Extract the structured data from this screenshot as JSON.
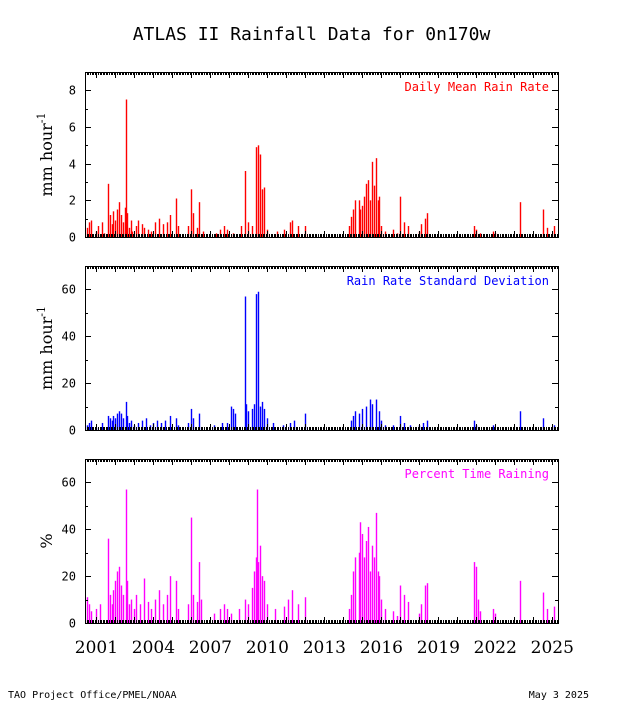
{
  "page": {
    "title": "ATLAS II Rainfall Data for 0n170w",
    "footer_left": "TAO Project Office/PMEL/NOAA",
    "footer_right": "May  3 2025"
  },
  "colors": {
    "rain_rate": "#ff0000",
    "std_dev": "#0000ff",
    "pct_time": "#ff00ff"
  },
  "chart_data": [
    {
      "type": "bar",
      "title": "Daily Mean Rain Rate",
      "ylabel": "mm hour-1",
      "ylim": [
        0,
        9
      ],
      "yticks": [
        0,
        2,
        4,
        6,
        8
      ],
      "color": "#ff0000",
      "xlim": [
        2000.4,
        2025.3
      ],
      "series": [
        [
          2000.5,
          0.5
        ],
        [
          2000.6,
          0.8
        ],
        [
          2000.7,
          0.9
        ],
        [
          2001.0,
          0.3
        ],
        [
          2001.1,
          0.6
        ],
        [
          2001.3,
          0.8
        ],
        [
          2001.4,
          0.2
        ],
        [
          2001.6,
          2.9
        ],
        [
          2001.7,
          1.2
        ],
        [
          2001.8,
          0.7
        ],
        [
          2001.9,
          1.4
        ],
        [
          2002.0,
          0.9
        ],
        [
          2002.1,
          1.5
        ],
        [
          2002.2,
          1.9
        ],
        [
          2002.3,
          1.2
        ],
        [
          2002.4,
          0.8
        ],
        [
          2002.5,
          1.6
        ],
        [
          2002.55,
          7.5
        ],
        [
          2002.6,
          1.3
        ],
        [
          2002.7,
          0.5
        ],
        [
          2002.8,
          0.9
        ],
        [
          2002.9,
          0.3
        ],
        [
          2003.1,
          0.6
        ],
        [
          2003.2,
          0.9
        ],
        [
          2003.4,
          0.7
        ],
        [
          2003.5,
          0.5
        ],
        [
          2003.7,
          0.4
        ],
        [
          2003.9,
          0.3
        ],
        [
          2004.1,
          0.8
        ],
        [
          2004.3,
          1.0
        ],
        [
          2004.5,
          0.7
        ],
        [
          2004.7,
          0.8
        ],
        [
          2004.9,
          1.2
        ],
        [
          2005.2,
          2.1
        ],
        [
          2005.3,
          0.6
        ],
        [
          2005.8,
          0.6
        ],
        [
          2006.0,
          2.6
        ],
        [
          2006.1,
          1.3
        ],
        [
          2006.3,
          0.5
        ],
        [
          2006.4,
          1.9
        ],
        [
          2006.6,
          0.3
        ],
        [
          2007.3,
          0.2
        ],
        [
          2007.5,
          0.4
        ],
        [
          2007.7,
          0.6
        ],
        [
          2007.9,
          0.4
        ],
        [
          2008.2,
          0.2
        ],
        [
          2008.6,
          0.6
        ],
        [
          2008.8,
          3.6
        ],
        [
          2009.0,
          0.8
        ],
        [
          2009.2,
          0.6
        ],
        [
          2009.4,
          4.9
        ],
        [
          2009.5,
          5.0
        ],
        [
          2009.6,
          4.5
        ],
        [
          2009.7,
          2.6
        ],
        [
          2009.8,
          2.7
        ],
        [
          2010.0,
          0.4
        ],
        [
          2010.5,
          0.3
        ],
        [
          2010.9,
          0.4
        ],
        [
          2011.2,
          0.8
        ],
        [
          2011.3,
          0.9
        ],
        [
          2011.6,
          0.6
        ],
        [
          2012.0,
          0.6
        ],
        [
          2014.3,
          0.6
        ],
        [
          2014.4,
          1.1
        ],
        [
          2014.5,
          1.5
        ],
        [
          2014.6,
          2.0
        ],
        [
          2014.8,
          2.0
        ],
        [
          2014.9,
          1.5
        ],
        [
          2015.0,
          1.7
        ],
        [
          2015.1,
          2.2
        ],
        [
          2015.2,
          2.9
        ],
        [
          2015.3,
          3.1
        ],
        [
          2015.4,
          2.0
        ],
        [
          2015.5,
          4.1
        ],
        [
          2015.6,
          2.8
        ],
        [
          2015.7,
          4.3
        ],
        [
          2015.8,
          2.0
        ],
        [
          2015.9,
          2.2
        ],
        [
          2016.0,
          0.6
        ],
        [
          2016.2,
          0.3
        ],
        [
          2016.6,
          0.4
        ],
        [
          2016.8,
          0.2
        ],
        [
          2017.0,
          2.2
        ],
        [
          2017.2,
          0.8
        ],
        [
          2017.4,
          0.6
        ],
        [
          2018.0,
          0.3
        ],
        [
          2018.1,
          0.7
        ],
        [
          2018.3,
          1.0
        ],
        [
          2018.4,
          1.3
        ],
        [
          2020.9,
          0.6
        ],
        [
          2021.0,
          0.4
        ],
        [
          2021.2,
          0.2
        ],
        [
          2021.9,
          0.3
        ],
        [
          2022.0,
          0.2
        ],
        [
          2023.3,
          1.9
        ],
        [
          2024.5,
          1.5
        ],
        [
          2024.7,
          0.5
        ],
        [
          2025.1,
          0.6
        ]
      ]
    },
    {
      "type": "bar",
      "title": "Rain Rate Standard Deviation",
      "ylabel": "mm hour-1",
      "ylim": [
        0,
        70
      ],
      "yticks": [
        0,
        20,
        40,
        60
      ],
      "color": "#0000ff",
      "xlim": [
        2000.4,
        2025.3
      ],
      "series": [
        [
          2000.5,
          2
        ],
        [
          2000.6,
          3
        ],
        [
          2000.7,
          4
        ],
        [
          2001.0,
          1
        ],
        [
          2001.3,
          3
        ],
        [
          2001.6,
          6
        ],
        [
          2001.7,
          5
        ],
        [
          2001.8,
          4
        ],
        [
          2001.9,
          6
        ],
        [
          2002.0,
          5
        ],
        [
          2002.1,
          7
        ],
        [
          2002.2,
          8
        ],
        [
          2002.3,
          7
        ],
        [
          2002.4,
          5
        ],
        [
          2002.55,
          12
        ],
        [
          2002.6,
          6
        ],
        [
          2002.7,
          3
        ],
        [
          2002.8,
          4
        ],
        [
          2003.0,
          2
        ],
        [
          2003.2,
          3
        ],
        [
          2003.4,
          4
        ],
        [
          2003.6,
          5
        ],
        [
          2003.8,
          2
        ],
        [
          2004.0,
          3
        ],
        [
          2004.2,
          4
        ],
        [
          2004.4,
          3
        ],
        [
          2004.6,
          4
        ],
        [
          2004.9,
          6
        ],
        [
          2005.2,
          5
        ],
        [
          2005.3,
          2
        ],
        [
          2005.8,
          3
        ],
        [
          2006.0,
          9
        ],
        [
          2006.1,
          5
        ],
        [
          2006.4,
          7
        ],
        [
          2007.2,
          2
        ],
        [
          2007.6,
          3
        ],
        [
          2007.9,
          3
        ],
        [
          2008.1,
          10
        ],
        [
          2008.2,
          9
        ],
        [
          2008.3,
          7
        ],
        [
          2008.8,
          57
        ],
        [
          2008.9,
          11
        ],
        [
          2009.0,
          8
        ],
        [
          2009.2,
          9
        ],
        [
          2009.3,
          11
        ],
        [
          2009.4,
          58
        ],
        [
          2009.5,
          59
        ],
        [
          2009.6,
          10
        ],
        [
          2009.7,
          12
        ],
        [
          2009.8,
          9
        ],
        [
          2010.0,
          5
        ],
        [
          2010.3,
          3
        ],
        [
          2010.8,
          2
        ],
        [
          2011.2,
          3
        ],
        [
          2011.4,
          4
        ],
        [
          2012.0,
          7
        ],
        [
          2014.4,
          4
        ],
        [
          2014.5,
          6
        ],
        [
          2014.6,
          8
        ],
        [
          2014.8,
          7
        ],
        [
          2015.0,
          9
        ],
        [
          2015.2,
          10
        ],
        [
          2015.4,
          13
        ],
        [
          2015.5,
          11
        ],
        [
          2015.7,
          13
        ],
        [
          2015.9,
          8
        ],
        [
          2016.0,
          4
        ],
        [
          2016.2,
          2
        ],
        [
          2016.6,
          2
        ],
        [
          2017.0,
          6
        ],
        [
          2017.2,
          3
        ],
        [
          2017.5,
          2
        ],
        [
          2018.0,
          2
        ],
        [
          2018.2,
          3
        ],
        [
          2018.4,
          4
        ],
        [
          2020.9,
          4
        ],
        [
          2021.0,
          2
        ],
        [
          2021.9,
          2
        ],
        [
          2023.3,
          8
        ],
        [
          2024.5,
          5
        ],
        [
          2025.1,
          2
        ]
      ]
    },
    {
      "type": "bar",
      "title": "Percent Time Raining",
      "ylabel": "%",
      "ylim": [
        0,
        70
      ],
      "yticks": [
        0,
        20,
        40,
        60
      ],
      "color": "#ff00ff",
      "xlim": [
        2000.4,
        2025.3
      ],
      "xticks": [
        2001,
        2004,
        2007,
        2010,
        2013,
        2016,
        2019,
        2022,
        2025
      ],
      "series": [
        [
          2000.5,
          11
        ],
        [
          2000.6,
          8
        ],
        [
          2000.7,
          5
        ],
        [
          2001.0,
          6
        ],
        [
          2001.2,
          8
        ],
        [
          2001.6,
          36
        ],
        [
          2001.7,
          12
        ],
        [
          2001.8,
          8
        ],
        [
          2001.9,
          14
        ],
        [
          2002.0,
          18
        ],
        [
          2002.1,
          22
        ],
        [
          2002.2,
          24
        ],
        [
          2002.3,
          16
        ],
        [
          2002.4,
          12
        ],
        [
          2002.55,
          57
        ],
        [
          2002.6,
          18
        ],
        [
          2002.7,
          8
        ],
        [
          2002.8,
          10
        ],
        [
          2003.0,
          6
        ],
        [
          2003.1,
          12
        ],
        [
          2003.3,
          8
        ],
        [
          2003.5,
          19
        ],
        [
          2003.7,
          9
        ],
        [
          2003.9,
          6
        ],
        [
          2004.1,
          10
        ],
        [
          2004.3,
          14
        ],
        [
          2004.5,
          8
        ],
        [
          2004.7,
          12
        ],
        [
          2004.9,
          20
        ],
        [
          2005.2,
          18
        ],
        [
          2005.3,
          6
        ],
        [
          2005.8,
          8
        ],
        [
          2006.0,
          45
        ],
        [
          2006.1,
          12
        ],
        [
          2006.3,
          9
        ],
        [
          2006.4,
          26
        ],
        [
          2006.5,
          10
        ],
        [
          2007.2,
          4
        ],
        [
          2007.5,
          6
        ],
        [
          2007.7,
          8
        ],
        [
          2007.9,
          6
        ],
        [
          2008.1,
          4
        ],
        [
          2008.5,
          6
        ],
        [
          2008.8,
          10
        ],
        [
          2009.0,
          8
        ],
        [
          2009.2,
          15
        ],
        [
          2009.3,
          22
        ],
        [
          2009.4,
          28
        ],
        [
          2009.45,
          57
        ],
        [
          2009.5,
          26
        ],
        [
          2009.6,
          33
        ],
        [
          2009.7,
          20
        ],
        [
          2009.8,
          18
        ],
        [
          2010.0,
          8
        ],
        [
          2010.4,
          6
        ],
        [
          2010.9,
          7
        ],
        [
          2011.1,
          10
        ],
        [
          2011.3,
          14
        ],
        [
          2011.6,
          8
        ],
        [
          2012.0,
          11
        ],
        [
          2014.3,
          6
        ],
        [
          2014.4,
          12
        ],
        [
          2014.5,
          22
        ],
        [
          2014.6,
          28
        ],
        [
          2014.8,
          30
        ],
        [
          2014.9,
          43
        ],
        [
          2015.0,
          38
        ],
        [
          2015.1,
          28
        ],
        [
          2015.2,
          35
        ],
        [
          2015.3,
          41
        ],
        [
          2015.4,
          22
        ],
        [
          2015.5,
          33
        ],
        [
          2015.6,
          28
        ],
        [
          2015.7,
          47
        ],
        [
          2015.8,
          22
        ],
        [
          2015.9,
          20
        ],
        [
          2016.0,
          10
        ],
        [
          2016.2,
          6
        ],
        [
          2016.6,
          5
        ],
        [
          2016.8,
          3
        ],
        [
          2017.0,
          16
        ],
        [
          2017.2,
          12
        ],
        [
          2017.4,
          9
        ],
        [
          2018.0,
          4
        ],
        [
          2018.1,
          8
        ],
        [
          2018.3,
          16
        ],
        [
          2018.4,
          17
        ],
        [
          2020.9,
          26
        ],
        [
          2021.0,
          24
        ],
        [
          2021.1,
          10
        ],
        [
          2021.2,
          5
        ],
        [
          2021.9,
          6
        ],
        [
          2022.0,
          4
        ],
        [
          2023.3,
          18
        ],
        [
          2024.5,
          13
        ],
        [
          2024.7,
          6
        ],
        [
          2025.1,
          7
        ]
      ]
    }
  ]
}
